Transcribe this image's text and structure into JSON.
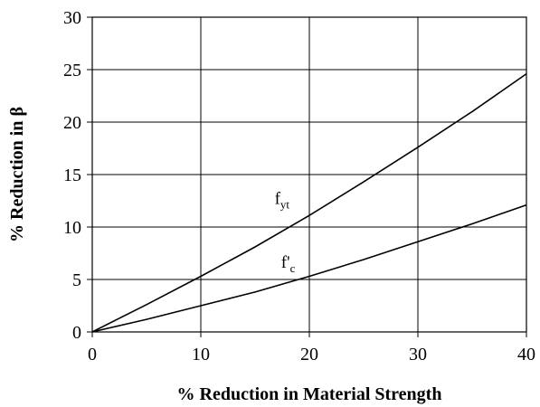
{
  "chart_data": {
    "type": "line",
    "xlabel": "% Reduction in Material Strength",
    "ylabel": "% Reduction in β",
    "xlim": [
      0,
      40
    ],
    "ylim": [
      0,
      30
    ],
    "xticks": [
      "0",
      "10",
      "20",
      "30",
      "40"
    ],
    "yticks": [
      "0",
      "5",
      "10",
      "15",
      "20",
      "25",
      "30"
    ],
    "grid": true,
    "legend": "none",
    "series": [
      {
        "name": "f_yt",
        "label_main": "f",
        "label_sub": "yt",
        "x": [
          0,
          5,
          10,
          15,
          20,
          25,
          30,
          35,
          40
        ],
        "y": [
          0,
          2.6,
          5.3,
          8.1,
          11.1,
          14.3,
          17.6,
          21.0,
          24.6
        ]
      },
      {
        "name": "f'_c",
        "label_main": "f'",
        "label_sub": "c",
        "x": [
          0,
          5,
          10,
          15,
          20,
          25,
          30,
          35,
          40
        ],
        "y": [
          0,
          1.2,
          2.5,
          3.8,
          5.3,
          6.9,
          8.6,
          10.3,
          12.1
        ]
      }
    ]
  }
}
